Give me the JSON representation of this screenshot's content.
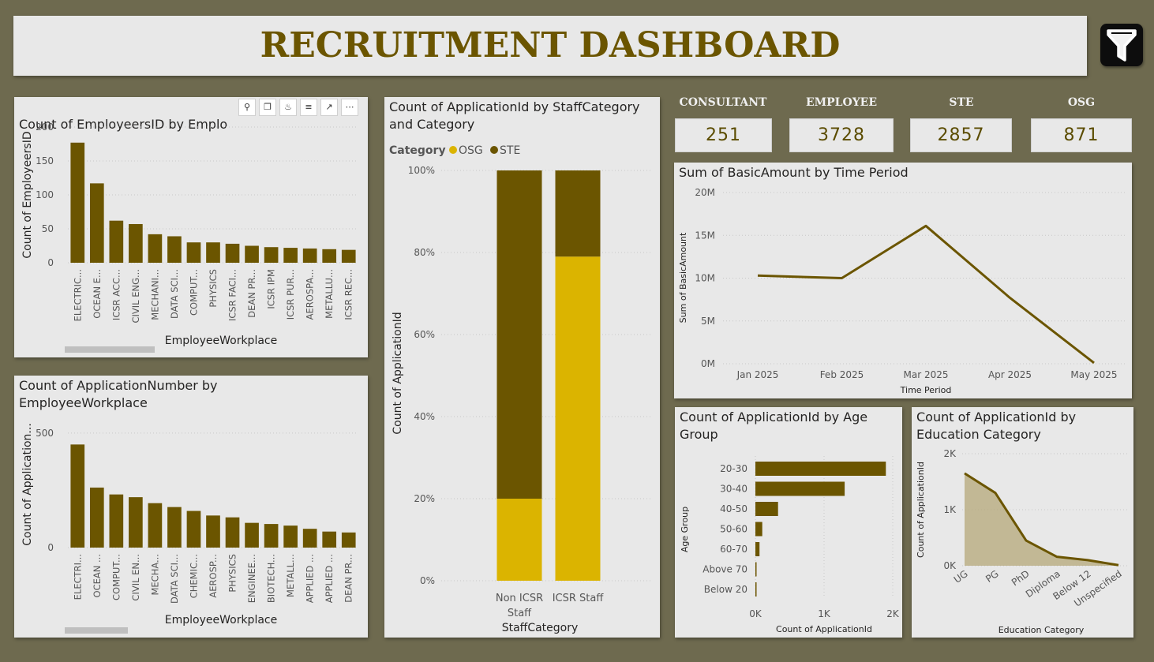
{
  "header": {
    "title": "RECRUITMENT DASHBOARD"
  },
  "filter_icon": "funnel-icon",
  "kpis": [
    {
      "label": "CONSULTANT",
      "value": "251"
    },
    {
      "label": "EMPLOYEE",
      "value": "3728"
    },
    {
      "label": "STE",
      "value": "2857"
    },
    {
      "label": "OSG",
      "value": "871"
    }
  ],
  "visual_header_icons": [
    "pin-icon",
    "copy-icon",
    "bell-icon",
    "filter-icon",
    "focus-mode-icon",
    "more-options-icon"
  ],
  "colors": {
    "dark": "#6b5500",
    "gold": "#dbb400",
    "area": "#b5a87a",
    "bg": "#e8e8e8",
    "page": "#6e6a4f"
  },
  "chart_data": [
    {
      "id": "employers",
      "type": "bar",
      "title": "Count of EmployeersID by EmployeeWorkplace",
      "title_visible": "Count of EmployeersID by Emplo",
      "title_partial": "e",
      "xlabel": "EmployeeWorkplace",
      "ylabel": "Count of EmployeersID",
      "ylim": [
        0,
        200
      ],
      "yticks": [
        "0",
        "50",
        "100",
        "150",
        "200"
      ],
      "categories": [
        "ELECTRIC...",
        "OCEAN E...",
        "ICSR ACC...",
        "CIVIL ENG...",
        "MECHANI...",
        "DATA SCI...",
        "COMPUT...",
        "PHYSICS",
        "ICSR FACI...",
        "DEAN PR...",
        "ICSR IPM",
        "ICSR PUR...",
        "AEROSPA...",
        "METALLU...",
        "ICSR REC..."
      ],
      "values": [
        177,
        117,
        62,
        57,
        42,
        39,
        30,
        30,
        28,
        25,
        23,
        22,
        21,
        20,
        19
      ]
    },
    {
      "id": "applications",
      "type": "bar",
      "title": "Count of ApplicationNumber by\nEmployeeWorkplace",
      "xlabel": "EmployeeWorkplace",
      "ylabel": "Count of Application...",
      "ylim": [
        0,
        620
      ],
      "yticks": [
        "0",
        "500"
      ],
      "categories": [
        "ELECTRI...",
        "OCEAN ...",
        "COMPUT...",
        "CIVIL EN...",
        "MECHA...",
        "DATA SCI...",
        "CHEMIC...",
        "AEROSP...",
        "PHYSICS",
        "ENGINEE...",
        "BIOTECH...",
        "METALL...",
        "APPLIED ...",
        "APPLIED ...",
        "DEAN PR..."
      ],
      "values": [
        450,
        262,
        232,
        220,
        194,
        177,
        160,
        140,
        132,
        108,
        103,
        96,
        82,
        70,
        66
      ]
    },
    {
      "id": "staff",
      "type": "bar",
      "stacked": "100%",
      "title": "Count of ApplicationId by StaffCategory\nand Category",
      "legend_title": "Category",
      "xlabel": "StaffCategory",
      "ylabel": "Count of ApplicationId",
      "yticks": [
        "0%",
        "20%",
        "40%",
        "60%",
        "80%",
        "100%"
      ],
      "categories": [
        "Non ICSR\nStaff",
        "ICSR Staff"
      ],
      "series": [
        {
          "name": "OSG",
          "values": [
            20,
            79
          ]
        },
        {
          "name": "STE",
          "values": [
            80,
            21
          ]
        }
      ]
    },
    {
      "id": "basic",
      "type": "line",
      "title": "Sum of BasicAmount by Time Period",
      "xlabel": "Time Period",
      "ylabel": "Sum of BasicAmount",
      "ylim": [
        0,
        20
      ],
      "yticks": [
        "0M",
        "5M",
        "10M",
        "15M",
        "20M"
      ],
      "categories": [
        "Jan 2025",
        "Feb 2025",
        "Mar 2025",
        "Apr 2025",
        "May 2025"
      ],
      "values": [
        10.3,
        10.0,
        16.1,
        7.7,
        0.1
      ],
      "value_unit": "M"
    },
    {
      "id": "age",
      "type": "bar",
      "orientation": "horizontal",
      "title": "Count of ApplicationId by Age\nGroup",
      "xlabel": "Count of ApplicationId",
      "ylabel": "Age Group",
      "xlim": [
        0,
        2000
      ],
      "xticks": [
        "0K",
        "1K",
        "2K"
      ],
      "categories": [
        "20-30",
        "30-40",
        "40-50",
        "50-60",
        "60-70",
        "Above 70",
        "Below 20"
      ],
      "values": [
        1900,
        1300,
        330,
        100,
        60,
        15,
        10
      ]
    },
    {
      "id": "education",
      "type": "area",
      "title": "Count of ApplicationId by\nEducation Category",
      "xlabel": "Education Category",
      "ylabel": "Count of ApplicationId",
      "ylim": [
        0,
        2000
      ],
      "yticks": [
        "0K",
        "1K",
        "2K"
      ],
      "categories": [
        "UG",
        "PG",
        "PhD",
        "Diploma",
        "Below 12",
        "Unspecified"
      ],
      "values": [
        1650,
        1300,
        450,
        160,
        100,
        10
      ]
    }
  ]
}
